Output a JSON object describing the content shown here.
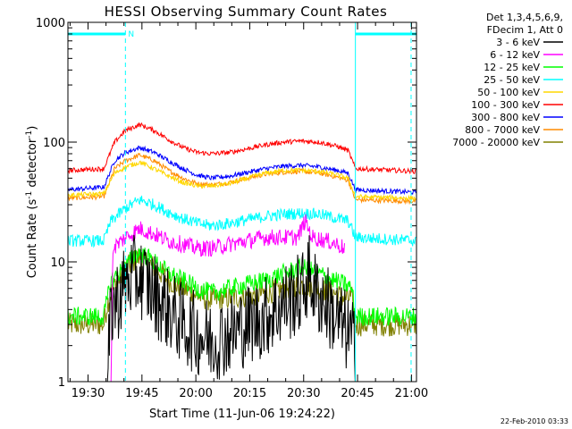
{
  "chart_data": {
    "type": "line",
    "title": "HESSI Observing Summary Count Rates",
    "xlabel": "Start Time (11-Jun-06 19:24:22)",
    "ylabel_main": "Count Rate (s",
    "ylabel_sup1": "-1",
    "ylabel_mid": " detector",
    "ylabel_sup2": "-1",
    "ylabel_end": ")",
    "yscale": "log",
    "ylim": [
      1,
      1000
    ],
    "xlim_minutes": [
      0,
      97
    ],
    "x_ticks": [
      {
        "label": "19:30",
        "min": 5.6
      },
      {
        "label": "19:45",
        "min": 20.6
      },
      {
        "label": "20:00",
        "min": 35.6
      },
      {
        "label": "20:15",
        "min": 50.6
      },
      {
        "label": "20:30",
        "min": 65.6
      },
      {
        "label": "20:45",
        "min": 80.6
      },
      {
        "label": "21:00",
        "min": 95.6
      }
    ],
    "y_ticks": [
      {
        "label": "1",
        "value": 1
      },
      {
        "label": "10",
        "value": 10
      },
      {
        "label": "100",
        "value": 100
      },
      {
        "label": "1000",
        "value": 1000
      }
    ],
    "legend_header": [
      "Det 1,3,4,5,6,9,",
      "FDecim 1, Att 0"
    ],
    "series": [
      {
        "name": "3 - 6 keV",
        "color": "#000000",
        "points": [
          [
            11,
            1
          ],
          [
            12,
            4
          ],
          [
            14,
            5
          ],
          [
            16,
            6.5
          ],
          [
            18,
            7.5
          ],
          [
            20,
            7.5
          ],
          [
            22,
            6.5
          ],
          [
            25,
            5
          ],
          [
            28,
            4
          ],
          [
            32,
            3
          ],
          [
            36,
            2.5
          ],
          [
            40,
            2.2
          ],
          [
            45,
            2.5
          ],
          [
            50,
            3
          ],
          [
            55,
            3.5
          ],
          [
            60,
            4.5
          ],
          [
            65,
            5.5
          ],
          [
            67,
            8
          ],
          [
            69,
            5.5
          ],
          [
            72,
            4.5
          ],
          [
            74,
            3.5
          ],
          [
            76,
            3
          ],
          [
            78,
            2.5
          ],
          [
            80,
            2
          ]
        ],
        "noise": 0.35
      },
      {
        "name": "6 - 12 keV",
        "color": "#ff00ff",
        "points": [
          [
            12,
            1
          ],
          [
            12.5,
            13
          ],
          [
            16,
            16
          ],
          [
            20,
            19
          ],
          [
            24,
            17
          ],
          [
            28,
            15
          ],
          [
            32,
            14
          ],
          [
            36,
            13
          ],
          [
            40,
            13
          ],
          [
            45,
            14
          ],
          [
            50,
            15
          ],
          [
            55,
            16
          ],
          [
            60,
            16
          ],
          [
            64,
            16
          ],
          [
            66,
            22
          ],
          [
            68,
            16
          ],
          [
            72,
            15
          ],
          [
            75,
            14
          ],
          [
            77,
            13
          ]
        ],
        "noise": 0.07
      },
      {
        "name": "12 - 25 keV",
        "color": "#00ff00",
        "points": [
          [
            0,
            3.5
          ],
          [
            10,
            3.5
          ],
          [
            12,
            7
          ],
          [
            16,
            9
          ],
          [
            18,
            11
          ],
          [
            20,
            12
          ],
          [
            22,
            11
          ],
          [
            25,
            9.5
          ],
          [
            28,
            8
          ],
          [
            32,
            7
          ],
          [
            36,
            6
          ],
          [
            40,
            5.5
          ],
          [
            45,
            6
          ],
          [
            50,
            6.5
          ],
          [
            55,
            7
          ],
          [
            60,
            8
          ],
          [
            65,
            9
          ],
          [
            70,
            8
          ],
          [
            74,
            7
          ],
          [
            77,
            6.5
          ],
          [
            79,
            6
          ],
          [
            80,
            3.5
          ],
          [
            97,
            3.5
          ]
        ],
        "noise": 0.08
      },
      {
        "name": "25 - 50 keV",
        "color": "#00ffff",
        "points": [
          [
            0,
            15
          ],
          [
            10,
            15
          ],
          [
            12,
            22
          ],
          [
            16,
            28
          ],
          [
            20,
            33
          ],
          [
            24,
            30
          ],
          [
            28,
            26
          ],
          [
            32,
            23
          ],
          [
            36,
            21
          ],
          [
            40,
            20
          ],
          [
            45,
            21
          ],
          [
            50,
            22.5
          ],
          [
            55,
            24
          ],
          [
            60,
            25
          ],
          [
            65,
            25.5
          ],
          [
            70,
            25
          ],
          [
            75,
            23
          ],
          [
            78,
            22
          ],
          [
            80,
            16
          ],
          [
            97,
            15
          ]
        ],
        "noise": 0.05
      },
      {
        "name": "50 - 100 keV",
        "color": "#ffd700",
        "points": [
          [
            0,
            36
          ],
          [
            10,
            37
          ],
          [
            13,
            55
          ],
          [
            16,
            62
          ],
          [
            20,
            68
          ],
          [
            24,
            60
          ],
          [
            28,
            52
          ],
          [
            32,
            46
          ],
          [
            36,
            43
          ],
          [
            40,
            43
          ],
          [
            45,
            45
          ],
          [
            50,
            50
          ],
          [
            55,
            55
          ],
          [
            60,
            58
          ],
          [
            65,
            58
          ],
          [
            70,
            57
          ],
          [
            75,
            53
          ],
          [
            78,
            50
          ],
          [
            80,
            35
          ],
          [
            97,
            34
          ]
        ],
        "noise": 0.02
      },
      {
        "name": "100 - 300 keV",
        "color": "#ff0000",
        "points": [
          [
            0,
            58
          ],
          [
            10,
            60
          ],
          [
            13,
            100
          ],
          [
            16,
            125
          ],
          [
            20,
            140
          ],
          [
            24,
            125
          ],
          [
            28,
            105
          ],
          [
            32,
            90
          ],
          [
            36,
            82
          ],
          [
            40,
            80
          ],
          [
            45,
            82
          ],
          [
            50,
            88
          ],
          [
            55,
            95
          ],
          [
            60,
            100
          ],
          [
            65,
            102
          ],
          [
            70,
            100
          ],
          [
            75,
            92
          ],
          [
            78,
            85
          ],
          [
            80,
            60
          ],
          [
            97,
            57
          ]
        ],
        "noise": 0.02
      },
      {
        "name": "300 - 800 keV",
        "color": "#0000ff",
        "points": [
          [
            0,
            40
          ],
          [
            10,
            42
          ],
          [
            13,
            70
          ],
          [
            16,
            82
          ],
          [
            20,
            90
          ],
          [
            24,
            82
          ],
          [
            28,
            70
          ],
          [
            32,
            60
          ],
          [
            36,
            53
          ],
          [
            40,
            50
          ],
          [
            45,
            52
          ],
          [
            50,
            56
          ],
          [
            55,
            60
          ],
          [
            60,
            63
          ],
          [
            65,
            64
          ],
          [
            70,
            62
          ],
          [
            75,
            58
          ],
          [
            78,
            55
          ],
          [
            80,
            40
          ],
          [
            97,
            38
          ]
        ],
        "noise": 0.02
      },
      {
        "name": "800 - 7000 keV",
        "color": "#ff8c00",
        "points": [
          [
            0,
            34
          ],
          [
            10,
            35
          ],
          [
            13,
            60
          ],
          [
            16,
            70
          ],
          [
            20,
            78
          ],
          [
            24,
            70
          ],
          [
            28,
            58
          ],
          [
            32,
            50
          ],
          [
            36,
            45
          ],
          [
            40,
            44
          ],
          [
            45,
            46
          ],
          [
            50,
            50
          ],
          [
            55,
            54
          ],
          [
            60,
            56
          ],
          [
            65,
            57
          ],
          [
            70,
            55
          ],
          [
            75,
            51
          ],
          [
            78,
            48
          ],
          [
            80,
            33
          ],
          [
            97,
            32
          ]
        ],
        "noise": 0.02
      },
      {
        "name": "7000 - 20000 keV",
        "color": "#808000",
        "points": [
          [
            0,
            3
          ],
          [
            10,
            3
          ],
          [
            11,
            4.5
          ],
          [
            13,
            6.5
          ],
          [
            16,
            8.5
          ],
          [
            18,
            10
          ],
          [
            20,
            11
          ],
          [
            22,
            10
          ],
          [
            25,
            8.5
          ],
          [
            28,
            7
          ],
          [
            32,
            6
          ],
          [
            36,
            5.2
          ],
          [
            40,
            4.8
          ],
          [
            45,
            5
          ],
          [
            50,
            5.2
          ],
          [
            55,
            5.5
          ],
          [
            60,
            6
          ],
          [
            65,
            6.5
          ],
          [
            70,
            6
          ],
          [
            74,
            5.5
          ],
          [
            77,
            5
          ],
          [
            79,
            5
          ],
          [
            80,
            3
          ],
          [
            97,
            3
          ]
        ],
        "noise": 0.1
      }
    ],
    "attenuator": {
      "label": "N",
      "level": 800,
      "segments": [
        [
          0,
          16
        ],
        [
          80,
          97
        ]
      ]
    },
    "vertical_markers_dashed_minutes": [
      16,
      95.5
    ],
    "vertical_markers_solid_minutes": [
      80
    ],
    "timestamp": "22-Feb-2010 03:33"
  }
}
